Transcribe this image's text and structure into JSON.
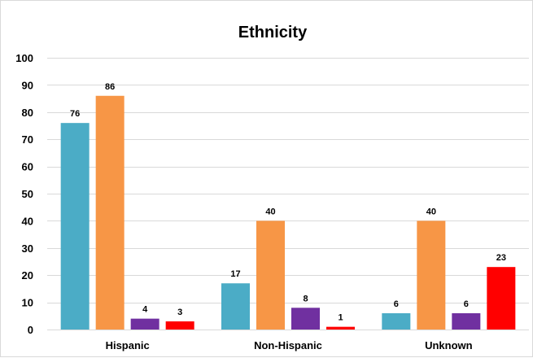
{
  "chart_data": {
    "type": "bar",
    "title": "Ethnicity",
    "xlabel": "",
    "ylabel": "",
    "ylim": [
      0,
      100
    ],
    "yticks": [
      0,
      10,
      20,
      30,
      40,
      50,
      60,
      70,
      80,
      90,
      100
    ],
    "grid": true,
    "legend": "none",
    "categories": [
      "Hispanic",
      "Non-Hispanic",
      "Unknown"
    ],
    "series": [
      {
        "values": [
          76,
          17,
          6
        ],
        "color": "#4bacc6"
      },
      {
        "values": [
          86,
          40,
          40
        ],
        "color": "#f79646"
      },
      {
        "values": [
          4,
          8,
          6
        ],
        "color": "#7030a0"
      },
      {
        "values": [
          3,
          1,
          23
        ],
        "color": "#ff0000"
      }
    ]
  }
}
